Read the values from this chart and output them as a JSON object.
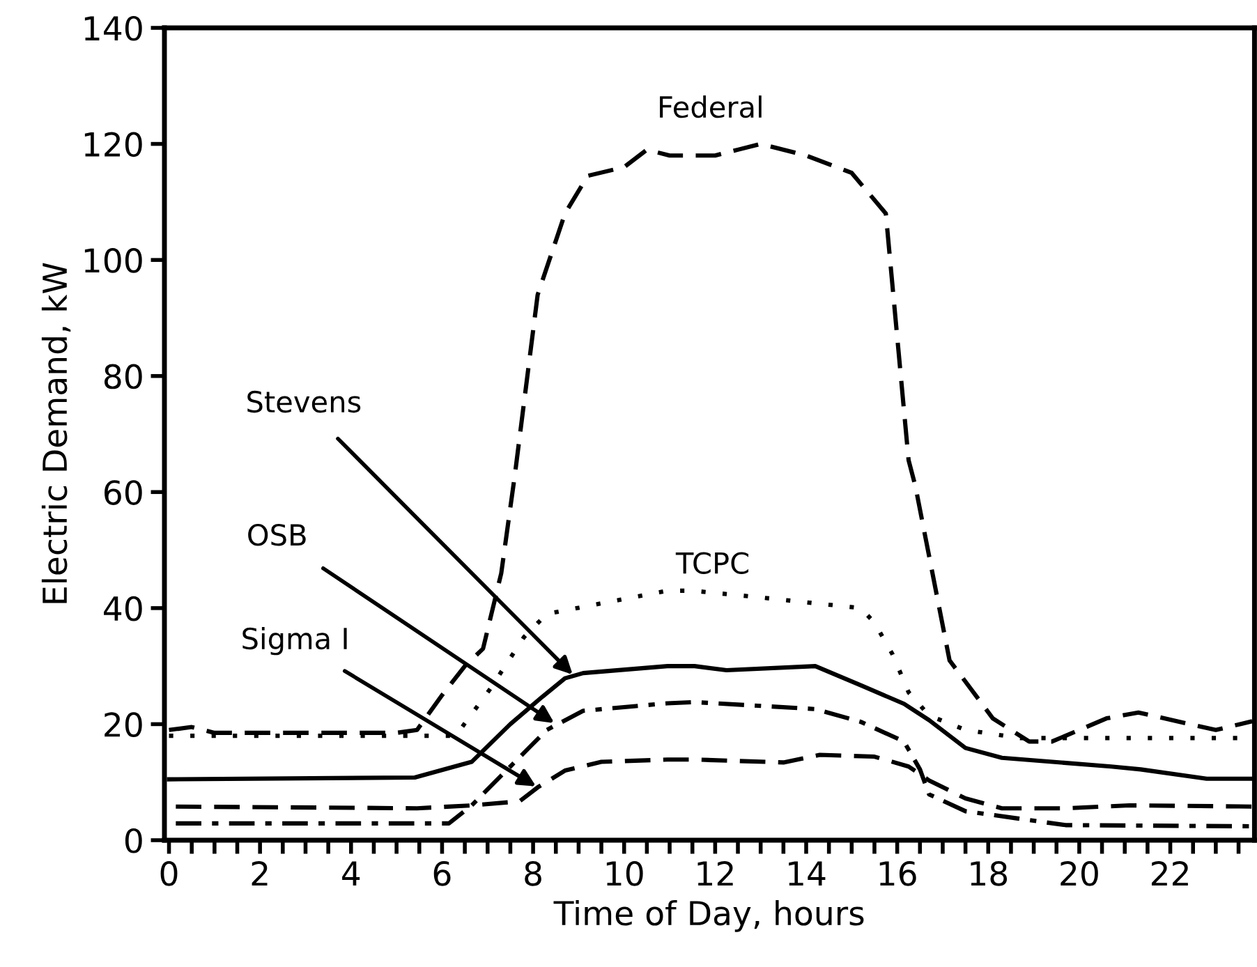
{
  "chart_data": {
    "type": "line",
    "xlabel": "Time of Day, hours",
    "ylabel": "Electric Demand, kW",
    "xlim": [
      -0.1,
      23.85
    ],
    "ylim": [
      0,
      140
    ],
    "xticks": [
      0,
      {
        "value": 0.5,
        "label": null
      },
      {
        "value": 1,
        "label": null
      },
      {
        "value": 1.5,
        "label": null
      },
      2,
      {
        "value": 2.5,
        "label": null
      },
      {
        "value": 3,
        "label": null
      },
      {
        "value": 3.5,
        "label": null
      },
      4,
      {
        "value": 4.5,
        "label": null
      },
      {
        "value": 5,
        "label": null
      },
      {
        "value": 5.5,
        "label": null
      },
      6,
      {
        "value": 6.5,
        "label": null
      },
      {
        "value": 7,
        "label": null
      },
      {
        "value": 7.5,
        "label": null
      },
      8,
      {
        "value": 8.5,
        "label": null
      },
      {
        "value": 9,
        "label": null
      },
      {
        "value": 9.5,
        "label": null
      },
      10,
      {
        "value": 10.5,
        "label": null
      },
      {
        "value": 11,
        "label": null
      },
      {
        "value": 11.5,
        "label": null
      },
      12,
      {
        "value": 12.5,
        "label": null
      },
      {
        "value": 13,
        "label": null
      },
      {
        "value": 13.5,
        "label": null
      },
      14,
      {
        "value": 14.5,
        "label": null
      },
      {
        "value": 15,
        "label": null
      },
      {
        "value": 15.5,
        "label": null
      },
      16,
      {
        "value": 16.5,
        "label": null
      },
      {
        "value": 17,
        "label": null
      },
      {
        "value": 17.5,
        "label": null
      },
      18,
      {
        "value": 18.5,
        "label": null
      },
      {
        "value": 19,
        "label": null
      },
      {
        "value": 19.5,
        "label": null
      },
      20,
      {
        "value": 20.5,
        "label": null
      },
      {
        "value": 21,
        "label": null
      },
      {
        "value": 21.5,
        "label": null
      },
      22,
      {
        "value": 22.5,
        "label": null
      },
      {
        "value": 23,
        "label": null
      },
      {
        "value": 23.5,
        "label": null
      }
    ],
    "yticks": [
      0,
      20,
      40,
      60,
      80,
      100,
      120,
      140
    ],
    "grid": false,
    "marker": "none",
    "series": [
      {
        "color": "#000000",
        "line_style": "dashed",
        "x": [
          0,
          0.5,
          1,
          5,
          5.45,
          6,
          6.5,
          6.9,
          7.3,
          7.6,
          8.1,
          8.7,
          9.2,
          10,
          10.5,
          11,
          12,
          12.5,
          13,
          14,
          15,
          15.75,
          16.25,
          16.4,
          17.15,
          18.1,
          18.9,
          19.4,
          20.6,
          21.3,
          23,
          23.8
        ],
        "values": [
          19,
          19.5,
          18.5,
          18.5,
          19,
          25,
          30,
          33,
          46,
          63,
          94,
          108,
          114.5,
          116,
          119,
          118,
          118,
          119,
          120,
          118,
          115,
          108,
          65.5,
          61,
          31,
          21,
          17,
          17,
          21,
          22,
          19,
          20.5
        ]
      },
      {
        "color": "#000000",
        "line_style": "dotted",
        "x": [
          0,
          6,
          6.3,
          7.05,
          7.8,
          8.3,
          10.95,
          11.5,
          12.8,
          15.2,
          15.5,
          15.9,
          16.25,
          16.7,
          17.5,
          18.7,
          23.8
        ],
        "values": [
          18,
          18,
          18,
          26,
          35,
          39,
          43,
          43,
          42,
          40,
          37.5,
          32,
          25.5,
          21.5,
          19,
          17.6,
          17.6
        ]
      },
      {
        "color": "#000000",
        "line_style": "solid",
        "x": [
          0,
          5.4,
          6.65,
          7.5,
          8.2,
          8.7,
          9.1,
          10.95,
          11.55,
          12.25,
          14.2,
          15.2,
          16.15,
          16.7,
          17.5,
          18.3,
          20.7,
          21.35,
          22.8,
          23.8
        ],
        "values": [
          10.5,
          10.8,
          13.5,
          20,
          24.7,
          27.9,
          28.8,
          30,
          30,
          29.3,
          30,
          26.7,
          23.5,
          20.7,
          15.9,
          14.2,
          12.7,
          12.2,
          10.6,
          10.6
        ]
      },
      {
        "color": "#000000",
        "line_style": "dashdot",
        "x": [
          0.15,
          6.15,
          6.65,
          7.5,
          8.3,
          9.1,
          10.95,
          11.55,
          14.2,
          15.2,
          16.15,
          16.5,
          16.7,
          17.5,
          18.6,
          19.7,
          23.8
        ],
        "values": [
          2.9,
          2.9,
          6,
          12.7,
          19,
          22.3,
          23.6,
          23.8,
          22.6,
          20.4,
          17,
          12.2,
          7.9,
          5,
          3.8,
          2.6,
          2.4
        ]
      },
      {
        "color": "#000000",
        "line_style": "dashed",
        "x": [
          0.15,
          5.45,
          6.65,
          7.7,
          8.1,
          8.7,
          9.5,
          10.95,
          11.55,
          13.5,
          14.3,
          15.5,
          16.25,
          16.7,
          17.5,
          18.3,
          19.7,
          21.1,
          23.8
        ],
        "values": [
          5.8,
          5.5,
          6,
          6.7,
          9.1,
          12,
          13.5,
          13.9,
          13.9,
          13.4,
          14.7,
          14.4,
          12.7,
          10.3,
          7.2,
          5.5,
          5.5,
          6,
          5.8
        ]
      }
    ],
    "annotations": [
      {
        "text": "Federal",
        "x": 11.9,
        "y": 118
      },
      {
        "text": "TCPC",
        "x": 11.95,
        "y": 43
      },
      {
        "text": "Stevens",
        "x": 8.9,
        "y": 28.3
      },
      {
        "text": "OSB",
        "x": 8.5,
        "y": 20
      },
      {
        "text": "Sigma I",
        "x": 8.1,
        "y": 9.1
      }
    ]
  }
}
